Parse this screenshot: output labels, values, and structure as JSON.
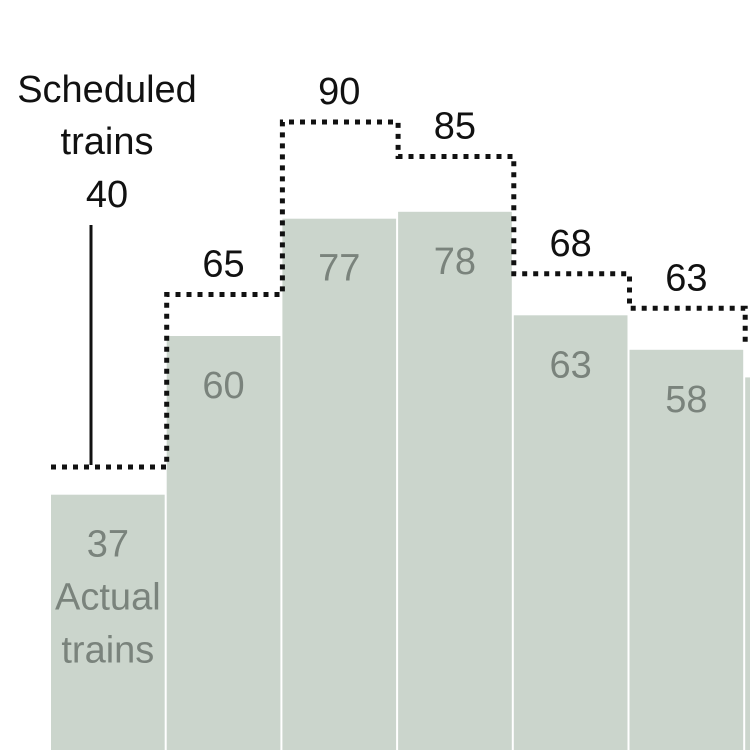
{
  "chart_data": {
    "type": "bar",
    "series": [
      {
        "name": "Actual trains",
        "values": [
          37,
          60,
          77,
          78,
          63,
          58,
          54
        ]
      },
      {
        "name": "Scheduled trains",
        "values": [
          40,
          65,
          90,
          85,
          68,
          63,
          58
        ]
      }
    ],
    "ylim": [
      0,
      100
    ],
    "annotations": {
      "actual_first": [
        "37",
        "Actual",
        "trains"
      ],
      "scheduled_first": [
        "Scheduled",
        "trains",
        "40"
      ]
    },
    "colors": {
      "bar": "#cbd5cc",
      "actual_text": "#7a837c",
      "scheduled_line": "#111111"
    }
  }
}
